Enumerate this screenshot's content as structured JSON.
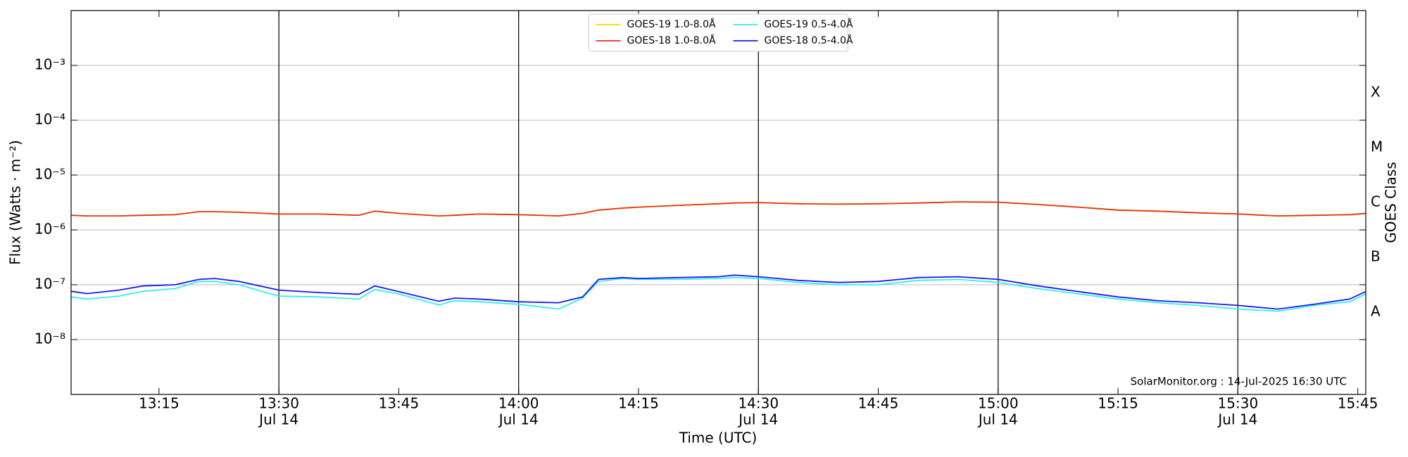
{
  "chart_data": {
    "type": "line",
    "ylabel": "Flux (Watts · m⁻²)",
    "xlabel": "Time (UTC)",
    "y2label": "GOES Class",
    "annotation": "SolarMonitor.org : 14-Jul-2025 16:30 UTC",
    "log_y": true,
    "grid": "y",
    "legend_position": "upper center",
    "x": [
      "13:04",
      "13:06",
      "13:10",
      "13:13",
      "13:17",
      "13:20",
      "13:22",
      "13:25",
      "13:30",
      "13:35",
      "13:40",
      "13:42",
      "13:45",
      "13:50",
      "13:52",
      "13:55",
      "14:00",
      "14:05",
      "14:08",
      "14:10",
      "14:13",
      "14:15",
      "14:20",
      "14:25",
      "14:27",
      "14:30",
      "14:35",
      "14:40",
      "14:45",
      "14:50",
      "14:55",
      "15:00",
      "15:05",
      "15:10",
      "15:15",
      "15:20",
      "15:25",
      "15:30",
      "15:35",
      "15:40",
      "15:44",
      "15:46"
    ],
    "series": [
      {
        "name": "GOES-19 1.0-8.0Å",
        "color": "#ffd700",
        "values": [
          1.85e-06,
          1.8e-06,
          1.8e-06,
          1.85e-06,
          1.9e-06,
          2.15e-06,
          2.15e-06,
          2.1e-06,
          1.95e-06,
          1.95e-06,
          1.85e-06,
          2.2e-06,
          2e-06,
          1.8e-06,
          1.85e-06,
          1.95e-06,
          1.9e-06,
          1.8e-06,
          2e-06,
          2.3e-06,
          2.5e-06,
          2.6e-06,
          2.8e-06,
          3e-06,
          3.1e-06,
          3.15e-06,
          3e-06,
          2.95e-06,
          3e-06,
          3.1e-06,
          3.25e-06,
          3.2e-06,
          2.9e-06,
          2.6e-06,
          2.3e-06,
          2.2e-06,
          2.05e-06,
          1.95e-06,
          1.8e-06,
          1.85e-06,
          1.9e-06,
          2e-06
        ]
      },
      {
        "name": "GOES-18 1.0-8.0Å",
        "color": "#e63312",
        "values": [
          1.85e-06,
          1.8e-06,
          1.8e-06,
          1.85e-06,
          1.9e-06,
          2.15e-06,
          2.15e-06,
          2.1e-06,
          1.95e-06,
          1.95e-06,
          1.85e-06,
          2.2e-06,
          2e-06,
          1.8e-06,
          1.85e-06,
          1.95e-06,
          1.9e-06,
          1.8e-06,
          2e-06,
          2.3e-06,
          2.5e-06,
          2.6e-06,
          2.8e-06,
          3e-06,
          3.1e-06,
          3.15e-06,
          3e-06,
          2.95e-06,
          3e-06,
          3.1e-06,
          3.25e-06,
          3.2e-06,
          2.9e-06,
          2.6e-06,
          2.3e-06,
          2.2e-06,
          2.05e-06,
          1.95e-06,
          1.8e-06,
          1.85e-06,
          1.9e-06,
          2e-06
        ]
      },
      {
        "name": "GOES-19 0.5-4.0Å",
        "color": "#33eeee",
        "values": [
          6e-08,
          5.5e-08,
          6.2e-08,
          7.6e-08,
          8.5e-08,
          1.15e-07,
          1.15e-07,
          1e-07,
          6.2e-08,
          6e-08,
          5.5e-08,
          8.2e-08,
          6.8e-08,
          4.3e-08,
          5.1e-08,
          4.9e-08,
          4.4e-08,
          3.6e-08,
          5.7e-08,
          1.15e-07,
          1.3e-07,
          1.25e-07,
          1.25e-07,
          1.3e-07,
          1.35e-07,
          1.3e-07,
          1.1e-07,
          1e-07,
          1e-07,
          1.2e-07,
          1.25e-07,
          1.1e-07,
          8.5e-08,
          6.8e-08,
          5.5e-08,
          4.7e-08,
          4.2e-08,
          3.6e-08,
          3.3e-08,
          4.3e-08,
          4.9e-08,
          6.8e-08
        ]
      },
      {
        "name": "GOES-18 0.5-4.0Å",
        "color": "#1a1aee",
        "values": [
          7.6e-08,
          6.9e-08,
          8e-08,
          9.5e-08,
          1e-07,
          1.25e-07,
          1.3e-07,
          1.15e-07,
          8e-08,
          7.2e-08,
          6.7e-08,
          9.5e-08,
          7.5e-08,
          5e-08,
          5.7e-08,
          5.5e-08,
          4.9e-08,
          4.7e-08,
          6e-08,
          1.25e-07,
          1.35e-07,
          1.3e-07,
          1.35e-07,
          1.4e-07,
          1.5e-07,
          1.4e-07,
          1.2e-07,
          1.1e-07,
          1.15e-07,
          1.35e-07,
          1.4e-07,
          1.25e-07,
          9.5e-08,
          7.5e-08,
          6e-08,
          5.1e-08,
          4.7e-08,
          4.2e-08,
          3.6e-08,
          4.5e-08,
          5.5e-08,
          7.5e-08
        ]
      }
    ],
    "xlim": [
      "13:04",
      "15:46"
    ],
    "xticks": [
      "13:15",
      "13:30",
      "13:45",
      "14:00",
      "14:15",
      "14:30",
      "14:45",
      "15:00",
      "15:15",
      "15:30",
      "15:45"
    ],
    "date_ticks": [
      {
        "value": "13:30",
        "label": "Jul 14"
      },
      {
        "value": "14:00",
        "label": "Jul 14"
      },
      {
        "value": "14:30",
        "label": "Jul 14"
      },
      {
        "value": "15:00",
        "label": "Jul 14"
      },
      {
        "value": "15:30",
        "label": "Jul 14"
      }
    ],
    "ylim": [
      1e-09,
      0.01
    ],
    "yticks": [
      {
        "value": 1e-08,
        "label": "10⁻⁸"
      },
      {
        "value": 1e-07,
        "label": "10⁻⁷"
      },
      {
        "value": 1e-06,
        "label": "10⁻⁶"
      },
      {
        "value": 1e-05,
        "label": "10⁻⁵"
      },
      {
        "value": 0.0001,
        "label": "10⁻⁴"
      },
      {
        "value": 0.001,
        "label": "10⁻³"
      }
    ],
    "goes_classes": [
      {
        "value": 3.162e-08,
        "label": "A"
      },
      {
        "value": 3.162e-07,
        "label": "B"
      },
      {
        "value": 3.162e-06,
        "label": "C"
      },
      {
        "value": 3.162e-05,
        "label": "M"
      },
      {
        "value": 0.0003162,
        "label": "X"
      }
    ]
  }
}
